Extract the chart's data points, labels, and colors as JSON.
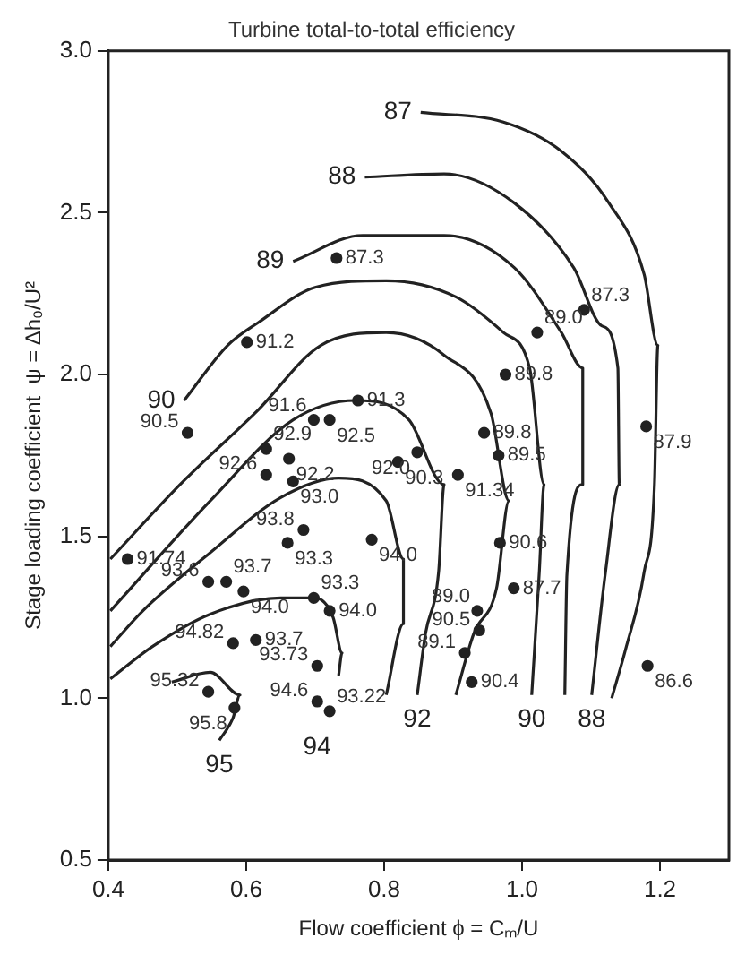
{
  "chart_data": {
    "type": "scatter",
    "title": "Turbine total-to-total efficiency",
    "xlabel": "Flow coefficient ϕ = Cₘ/U",
    "ylabel": "Stage loading coefficient  ψ = Δh₀/U²",
    "xlim": [
      0.4,
      1.3
    ],
    "xticks": [
      {
        "value": 0.4,
        "label": "0.4"
      },
      {
        "value": 0.6,
        "label": "0.6"
      },
      {
        "value": 0.8,
        "label": "0.8"
      },
      {
        "value": 1.0,
        "label": "1.0"
      },
      {
        "value": 1.2,
        "label": "1.2"
      }
    ],
    "ylim": [
      0.5,
      3.0
    ],
    "yticks": [
      {
        "value": 0.5,
        "label": "0.5"
      },
      {
        "value": 1.0,
        "label": "1.0"
      },
      {
        "value": 1.5,
        "label": "1.5"
      },
      {
        "value": 2.0,
        "label": "2.0"
      },
      {
        "value": 2.5,
        "label": "2.5"
      },
      {
        "value": 3.0,
        "label": "3.0"
      }
    ],
    "grid": false,
    "legend": false,
    "line_style": "solid",
    "series": [
      {
        "type": "scatter",
        "color": "#222222",
        "marker": "circle",
        "x": [
          0.731,
          1.09,
          1.022,
          0.601,
          0.976,
          0.762,
          0.698,
          0.721,
          0.515,
          0.945,
          0.629,
          0.848,
          0.662,
          0.966,
          0.82,
          1.18,
          0.629,
          0.907,
          0.668,
          0.683,
          0.66,
          0.782,
          0.968,
          0.428,
          0.545,
          0.571,
          0.988,
          0.698,
          0.596,
          0.721,
          0.935,
          0.581,
          0.614,
          0.938,
          0.917,
          0.703,
          0.545,
          0.583,
          0.703,
          0.721,
          0.927,
          1.182
        ],
        "values": [
          2.36,
          2.2,
          2.13,
          2.1,
          2.0,
          1.92,
          1.86,
          1.86,
          1.82,
          1.82,
          1.77,
          1.76,
          1.74,
          1.75,
          1.73,
          1.84,
          1.69,
          1.69,
          1.67,
          1.52,
          1.48,
          1.49,
          1.48,
          1.43,
          1.36,
          1.36,
          1.34,
          1.31,
          1.33,
          1.27,
          1.27,
          1.17,
          1.18,
          1.21,
          1.14,
          1.1,
          1.02,
          0.97,
          0.99,
          0.96,
          1.05,
          1.1
        ]
      },
      {
        "type": "line",
        "name": "87",
        "color": "#222222",
        "marker": "none",
        "x": [
          0.853,
          0.973,
          1.057,
          1.126,
          1.177,
          1.197,
          1.192,
          1.177,
          1.15,
          1.13
        ],
        "values": [
          2.81,
          2.78,
          2.69,
          2.53,
          2.31,
          2.09,
          1.66,
          1.39,
          1.15,
          1.0
        ]
      },
      {
        "type": "line",
        "name": "88",
        "color": "#222222",
        "marker": "none",
        "x": [
          0.772,
          0.887,
          0.989,
          1.075,
          1.116,
          1.139,
          1.141,
          1.121,
          1.101
        ],
        "values": [
          2.61,
          2.62,
          2.53,
          2.33,
          2.15,
          2.02,
          1.66,
          1.39,
          1.01
        ]
      },
      {
        "type": "line",
        "name": "89",
        "color": "#222222",
        "marker": "none",
        "x": [
          0.668,
          0.769,
          0.887,
          0.989,
          1.057,
          1.088,
          1.088,
          1.065,
          1.062
        ],
        "values": [
          2.35,
          2.43,
          2.43,
          2.33,
          2.13,
          2.02,
          1.66,
          1.38,
          1.01
        ]
      },
      {
        "type": "line",
        "name": "90",
        "color": "#222222",
        "marker": "none",
        "x": [
          0.51,
          0.573,
          0.617,
          0.701,
          0.803,
          0.904,
          0.973,
          1.011,
          1.032,
          1.025,
          1.014
        ],
        "values": [
          1.92,
          2.09,
          2.16,
          2.27,
          2.29,
          2.24,
          2.13,
          2.02,
          1.66,
          1.39,
          1.01
        ]
      },
      {
        "type": "line",
        "color": "#222222",
        "marker": "none",
        "x": [
          0.403,
          0.504,
          0.617,
          0.708,
          0.803,
          0.887,
          0.955,
          0.981,
          0.963,
          0.93,
          0.904
        ],
        "values": [
          1.43,
          1.66,
          1.89,
          2.09,
          2.13,
          2.06,
          1.88,
          1.61,
          1.34,
          1.2,
          1.01
        ]
      },
      {
        "type": "line",
        "name": "92",
        "color": "#222222",
        "marker": "none",
        "x": [
          0.403,
          0.548,
          0.668,
          0.759,
          0.836,
          0.887,
          0.879,
          0.86,
          0.848
        ],
        "values": [
          1.27,
          1.61,
          1.86,
          1.92,
          1.86,
          1.66,
          1.39,
          1.2,
          1.01
        ]
      },
      {
        "type": "line",
        "color": "#222222",
        "marker": "none",
        "x": [
          0.403,
          0.45,
          0.548,
          0.65,
          0.734,
          0.803,
          0.828,
          0.828,
          0.803
        ],
        "values": [
          1.16,
          1.27,
          1.45,
          1.62,
          1.68,
          1.61,
          1.43,
          1.23,
          1.01
        ]
      },
      {
        "type": "line",
        "name": "94",
        "color": "#222222",
        "marker": "none",
        "x": [
          0.403,
          0.464,
          0.548,
          0.65,
          0.7,
          0.726,
          0.739,
          0.734
        ],
        "values": [
          1.06,
          1.16,
          1.26,
          1.31,
          1.31,
          1.25,
          1.14,
          1.07
        ]
      },
      {
        "type": "line",
        "name": "95",
        "color": "#222222",
        "marker": "none",
        "x": [
          0.492,
          0.548,
          0.591,
          0.581,
          0.561
        ],
        "values": [
          1.05,
          1.08,
          1.01,
          0.94,
          0.87
        ]
      }
    ],
    "annotations": [
      {
        "text": "87.3",
        "x": 0.731,
        "y": 2.36
      },
      {
        "text": "87.3",
        "x": 1.09,
        "y": 2.2
      },
      {
        "text": "89.0",
        "x": 1.022,
        "y": 2.13
      },
      {
        "text": "91.2",
        "x": 0.601,
        "y": 2.1
      },
      {
        "text": "89.8",
        "x": 0.976,
        "y": 2.0
      },
      {
        "text": "91.3",
        "x": 0.762,
        "y": 1.92
      },
      {
        "text": "91.6",
        "x": 0.698,
        "y": 1.86
      },
      {
        "text": "92.5",
        "x": 0.721,
        "y": 1.86
      },
      {
        "text": "90.5",
        "x": 0.515,
        "y": 1.82
      },
      {
        "text": "89.8",
        "x": 0.945,
        "y": 1.82
      },
      {
        "text": "92.9",
        "x": 0.629,
        "y": 1.77
      },
      {
        "text": "92.0",
        "x": 0.848,
        "y": 1.76
      },
      {
        "text": "92.2",
        "x": 0.662,
        "y": 1.74
      },
      {
        "text": "89.5",
        "x": 0.966,
        "y": 1.75
      },
      {
        "text": "90.3",
        "x": 0.82,
        "y": 1.73
      },
      {
        "text": "87.9",
        "x": 1.18,
        "y": 1.84
      },
      {
        "text": "92.6",
        "x": 0.629,
        "y": 1.69
      },
      {
        "text": "91.34",
        "x": 0.907,
        "y": 1.69
      },
      {
        "text": "93.0",
        "x": 0.668,
        "y": 1.67
      },
      {
        "text": "93.8",
        "x": 0.683,
        "y": 1.52
      },
      {
        "text": "93.3",
        "x": 0.66,
        "y": 1.48
      },
      {
        "text": "94.0",
        "x": 0.782,
        "y": 1.49
      },
      {
        "text": "90.6",
        "x": 0.968,
        "y": 1.48
      },
      {
        "text": "91.74",
        "x": 0.428,
        "y": 1.43
      },
      {
        "text": "93.6",
        "x": 0.545,
        "y": 1.36
      },
      {
        "text": "93.7",
        "x": 0.571,
        "y": 1.36
      },
      {
        "text": "87.7",
        "x": 0.988,
        "y": 1.34
      },
      {
        "text": "93.3",
        "x": 0.698,
        "y": 1.31
      },
      {
        "text": "94.0",
        "x": 0.596,
        "y": 1.33
      },
      {
        "text": "94.0",
        "x": 0.721,
        "y": 1.27
      },
      {
        "text": "89.0",
        "x": 0.935,
        "y": 1.27
      },
      {
        "text": "94.82",
        "x": 0.581,
        "y": 1.17
      },
      {
        "text": "93.7",
        "x": 0.614,
        "y": 1.18
      },
      {
        "text": "90.5",
        "x": 0.938,
        "y": 1.21
      },
      {
        "text": "89.1",
        "x": 0.917,
        "y": 1.14
      },
      {
        "text": "93.73",
        "x": 0.703,
        "y": 1.1
      },
      {
        "text": "95.32",
        "x": 0.545,
        "y": 1.02
      },
      {
        "text": "95.8",
        "x": 0.583,
        "y": 0.97
      },
      {
        "text": "94.6",
        "x": 0.703,
        "y": 0.99
      },
      {
        "text": "93.22",
        "x": 0.721,
        "y": 0.96
      },
      {
        "text": "90.4",
        "x": 0.927,
        "y": 1.05
      },
      {
        "text": "86.6",
        "x": 1.182,
        "y": 1.1
      }
    ]
  }
}
